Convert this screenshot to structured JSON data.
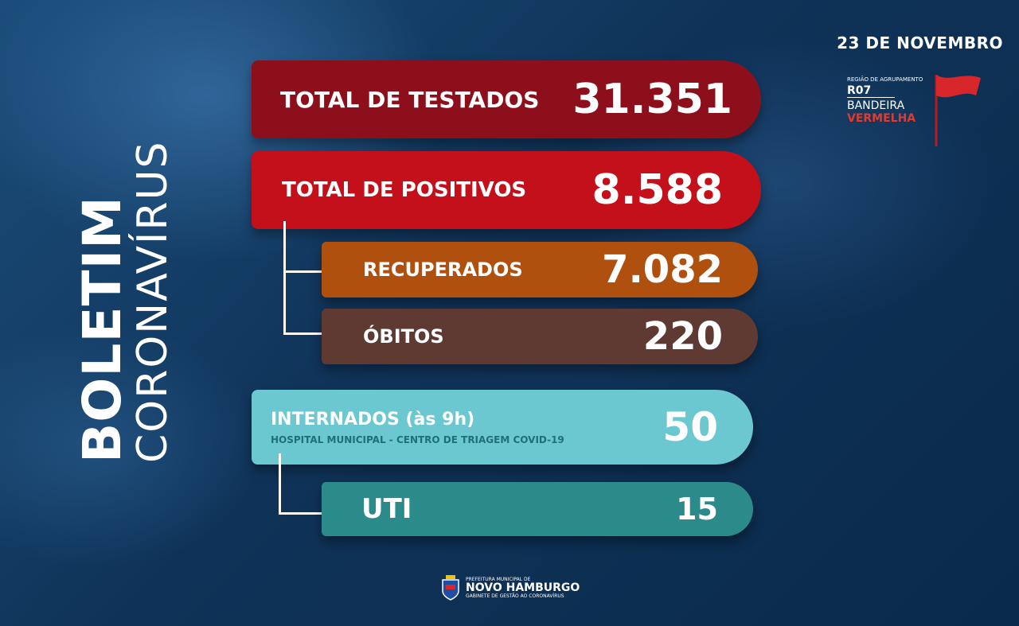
{
  "title": {
    "bold": "BOLETIM",
    "light": "CORONAVÍRUS"
  },
  "date": "23 DE NOVEMBRO",
  "region": {
    "caption": "REGIÃO DE AGRUPAMENTO",
    "code": "R07",
    "flag_line1": "BANDEIRA",
    "flag_line2": "VERMELHA",
    "flag_color": "#d8272a"
  },
  "stats": {
    "testados": {
      "label": "TOTAL DE TESTADOS",
      "value": "31.351",
      "color": "#8c0f1b"
    },
    "positivos": {
      "label": "TOTAL DE POSITIVOS",
      "value": "8.588",
      "color": "#c4101a"
    },
    "recuperados": {
      "label": "RECUPERADOS",
      "value": "7.082",
      "color": "#b0500e"
    },
    "obitos": {
      "label": "ÓBITOS",
      "value": "220",
      "color": "#5e3a33"
    },
    "internados": {
      "label": "INTERNADOS (às 9h)",
      "sublabel": "HOSPITAL MUNICIPAL - CENTRO DE TRIAGEM COVID-19",
      "value": "50",
      "color": "#6cc8d0",
      "text_color": "#1e6f78"
    },
    "uti": {
      "label": "UTI",
      "value": "15",
      "color": "#2a8b8a"
    }
  },
  "footer": {
    "line1": "PREFEITURA MUNICIPAL DE",
    "line2": "NOVO HAMBURGO",
    "line3": "GABINETE DE GESTÃO AO CORONAVÍRUS"
  }
}
